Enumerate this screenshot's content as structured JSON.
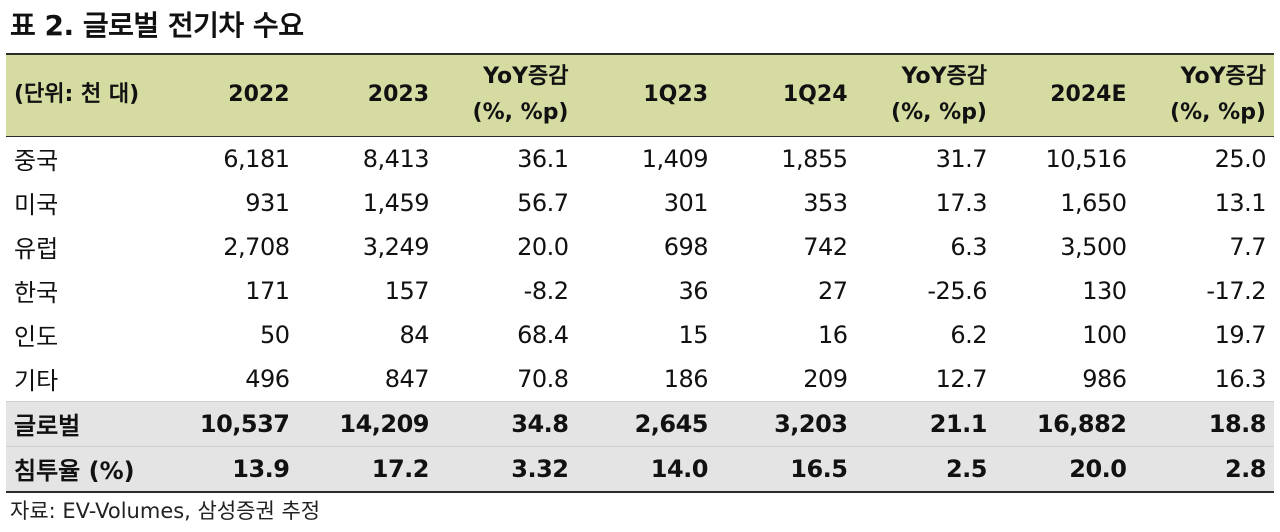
{
  "title": "표 2. 글로벌 전기차 수요",
  "table": {
    "unit_label": "(단위: 천 대)",
    "columns": [
      {
        "line1": "2022",
        "line2": ""
      },
      {
        "line1": "2023",
        "line2": ""
      },
      {
        "line1": "YoY증감",
        "line2": "(%, %p)"
      },
      {
        "line1": "1Q23",
        "line2": ""
      },
      {
        "line1": "1Q24",
        "line2": ""
      },
      {
        "line1": "YoY증감",
        "line2": "(%, %p)"
      },
      {
        "line1": "2024E",
        "line2": ""
      },
      {
        "line1": "YoY증감",
        "line2": "(%, %p)"
      }
    ],
    "rows": [
      {
        "label": "중국",
        "values": [
          "6,181",
          "8,413",
          "36.1",
          "1,409",
          "1,855",
          "31.7",
          "10,516",
          "25.0"
        ]
      },
      {
        "label": "미국",
        "values": [
          "931",
          "1,459",
          "56.7",
          "301",
          "353",
          "17.3",
          "1,650",
          "13.1"
        ]
      },
      {
        "label": "유럽",
        "values": [
          "2,708",
          "3,249",
          "20.0",
          "698",
          "742",
          "6.3",
          "3,500",
          "7.7"
        ]
      },
      {
        "label": "한국",
        "values": [
          "171",
          "157",
          "-8.2",
          "36",
          "27",
          "-25.6",
          "130",
          "-17.2"
        ]
      },
      {
        "label": "인도",
        "values": [
          "50",
          "84",
          "68.4",
          "15",
          "16",
          "6.2",
          "100",
          "19.7"
        ]
      },
      {
        "label": "기타",
        "values": [
          "496",
          "847",
          "70.8",
          "186",
          "209",
          "12.7",
          "986",
          "16.3"
        ]
      }
    ],
    "totals": [
      {
        "label": "글로벌",
        "values": [
          "10,537",
          "14,209",
          "34.8",
          "2,645",
          "3,203",
          "21.1",
          "16,882",
          "18.8"
        ]
      },
      {
        "label": "침투율 (%)",
        "values": [
          "13.9",
          "17.2",
          "3.32",
          "14.0",
          "16.5",
          "2.5",
          "20.0",
          "2.8"
        ]
      }
    ]
  },
  "source": "자료: EV-Volumes, 삼성증권 추정"
}
